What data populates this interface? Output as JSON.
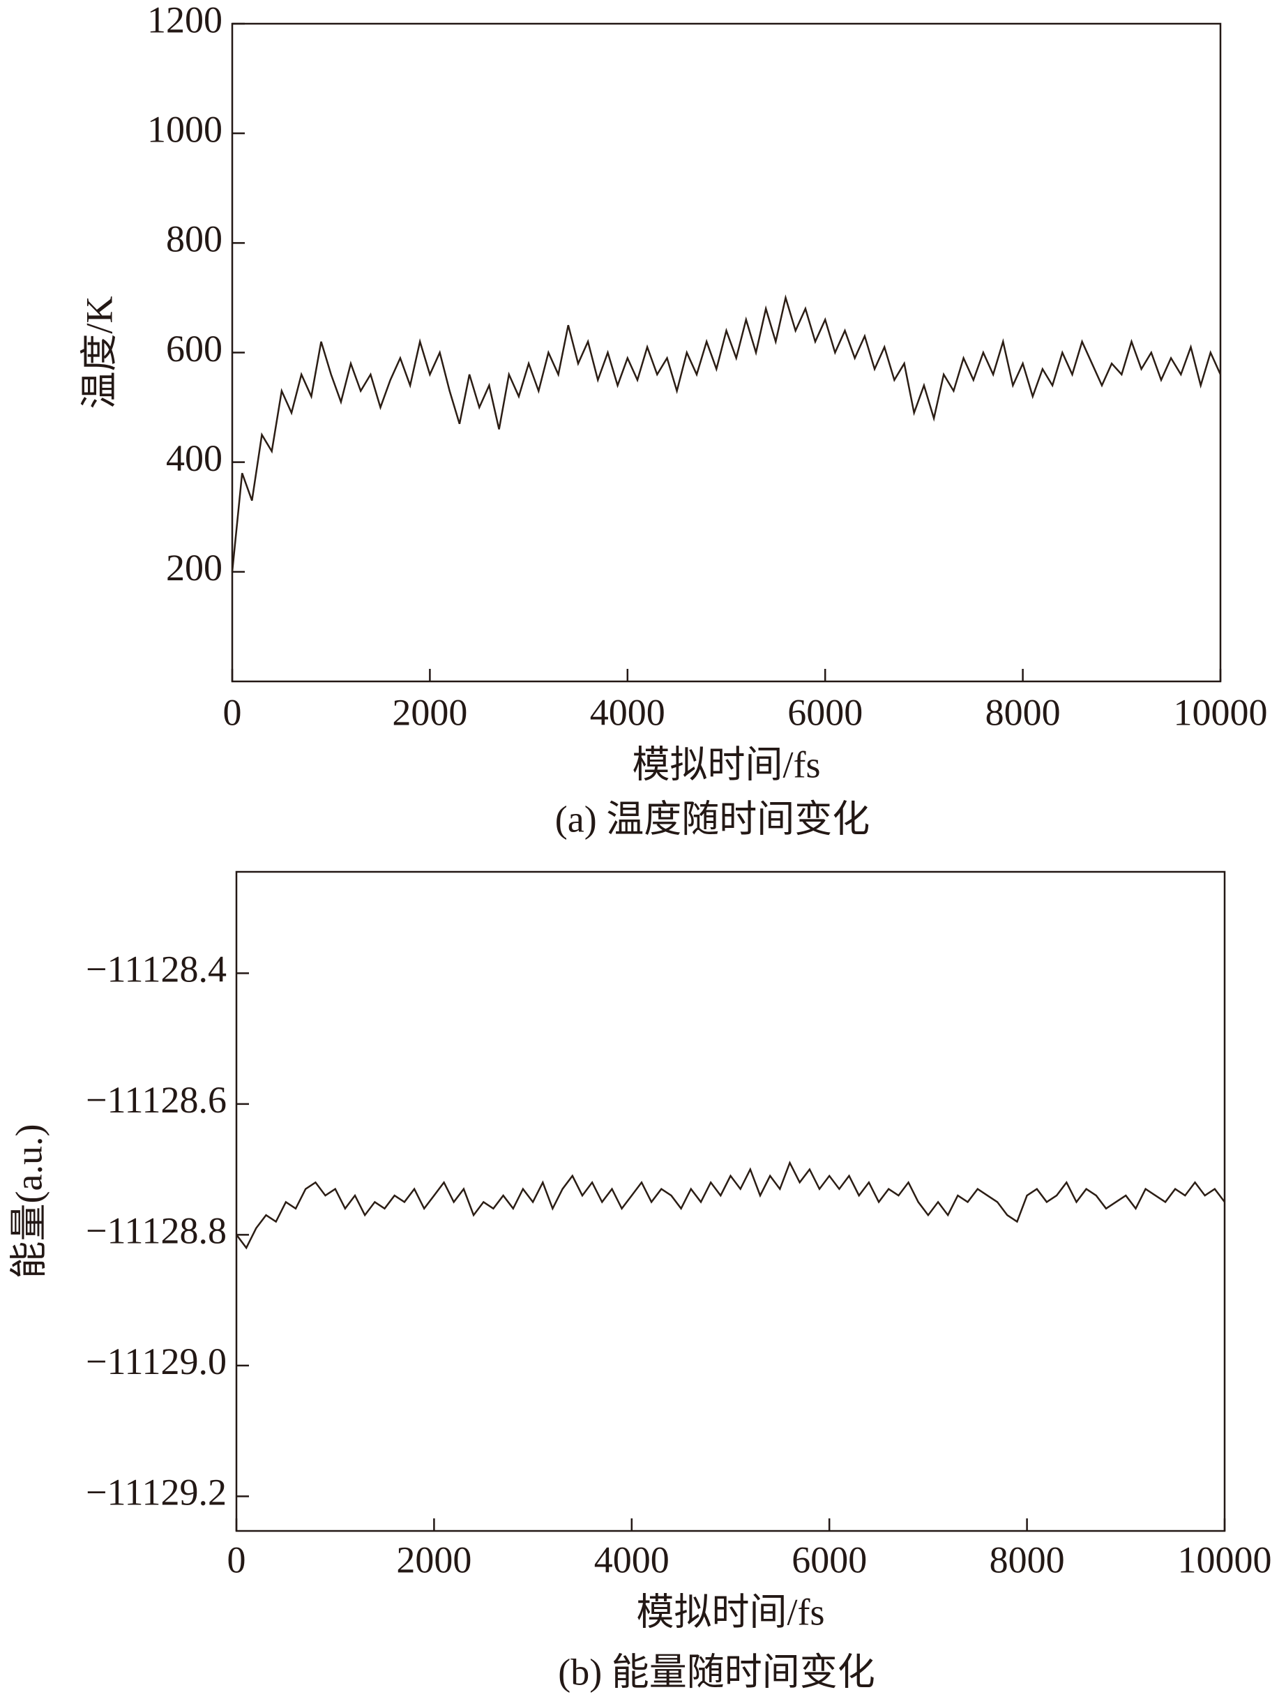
{
  "chart_data": [
    {
      "type": "line",
      "caption": "(a) 温度随时间变化",
      "x_label": "模拟时间/fs",
      "y_label": "温度/K",
      "color": "#2b1d14",
      "x": [
        0,
        100,
        200,
        300,
        400,
        500,
        600,
        700,
        800,
        900,
        1000,
        1100,
        1200,
        1300,
        1400,
        1500,
        1600,
        1700,
        1800,
        1900,
        2000,
        2100,
        2200,
        2300,
        2400,
        2500,
        2600,
        2700,
        2800,
        2900,
        3000,
        3100,
        3200,
        3300,
        3400,
        3500,
        3600,
        3700,
        3800,
        3900,
        4000,
        4100,
        4200,
        4300,
        4400,
        4500,
        4600,
        4700,
        4800,
        4900,
        5000,
        5100,
        5200,
        5300,
        5400,
        5500,
        5600,
        5700,
        5800,
        5900,
        6000,
        6100,
        6200,
        6300,
        6400,
        6500,
        6600,
        6700,
        6800,
        6900,
        7000,
        7100,
        7200,
        7300,
        7400,
        7500,
        7600,
        7700,
        7800,
        7900,
        8000,
        8100,
        8200,
        8300,
        8400,
        8500,
        8600,
        8700,
        8800,
        8900,
        9000,
        9100,
        9200,
        9300,
        9400,
        9500,
        9600,
        9700,
        9800,
        9900,
        10000
      ],
      "values": [
        200,
        380,
        330,
        450,
        420,
        530,
        490,
        560,
        520,
        620,
        560,
        510,
        580,
        530,
        560,
        500,
        550,
        590,
        540,
        620,
        560,
        600,
        530,
        470,
        560,
        500,
        540,
        460,
        560,
        520,
        580,
        530,
        600,
        560,
        650,
        580,
        620,
        550,
        600,
        540,
        590,
        550,
        610,
        560,
        590,
        530,
        600,
        560,
        620,
        570,
        640,
        590,
        660,
        600,
        680,
        620,
        700,
        640,
        680,
        620,
        660,
        600,
        640,
        590,
        630,
        570,
        610,
        550,
        580,
        490,
        540,
        480,
        560,
        530,
        590,
        550,
        600,
        560,
        620,
        540,
        580,
        520,
        570,
        540,
        600,
        560,
        620,
        580,
        540,
        580,
        560,
        620,
        570,
        600,
        550,
        590,
        560,
        610,
        540,
        600,
        560
      ],
      "xlim": [
        0,
        10000
      ],
      "ylim": [
        0,
        1200
      ],
      "xticks": [
        0,
        2000,
        4000,
        6000,
        8000,
        10000
      ],
      "yticks": [
        200,
        400,
        600,
        800,
        1000,
        1200
      ]
    },
    {
      "type": "line",
      "caption": "(b) 能量随时间变化",
      "x_label": "模拟时间/fs",
      "y_label": "能量(a.u.)",
      "color": "#2b1d14",
      "x": [
        0,
        100,
        200,
        300,
        400,
        500,
        600,
        700,
        800,
        900,
        1000,
        1100,
        1200,
        1300,
        1400,
        1500,
        1600,
        1700,
        1800,
        1900,
        2000,
        2100,
        2200,
        2300,
        2400,
        2500,
        2600,
        2700,
        2800,
        2900,
        3000,
        3100,
        3200,
        3300,
        3400,
        3500,
        3600,
        3700,
        3800,
        3900,
        4000,
        4100,
        4200,
        4300,
        4400,
        4500,
        4600,
        4700,
        4800,
        4900,
        5000,
        5100,
        5200,
        5300,
        5400,
        5500,
        5600,
        5700,
        5800,
        5900,
        6000,
        6100,
        6200,
        6300,
        6400,
        6500,
        6600,
        6700,
        6800,
        6900,
        7000,
        7100,
        7200,
        7300,
        7400,
        7500,
        7600,
        7700,
        7800,
        7900,
        8000,
        8100,
        8200,
        8300,
        8400,
        8500,
        8600,
        8700,
        8800,
        8900,
        9000,
        9100,
        9200,
        9300,
        9400,
        9500,
        9600,
        9700,
        9800,
        9900,
        10000
      ],
      "values": [
        -11128.8,
        -11128.82,
        -11128.79,
        -11128.77,
        -11128.78,
        -11128.75,
        -11128.76,
        -11128.73,
        -11128.72,
        -11128.74,
        -11128.73,
        -11128.76,
        -11128.74,
        -11128.77,
        -11128.75,
        -11128.76,
        -11128.74,
        -11128.75,
        -11128.73,
        -11128.76,
        -11128.74,
        -11128.72,
        -11128.75,
        -11128.73,
        -11128.77,
        -11128.75,
        -11128.76,
        -11128.74,
        -11128.76,
        -11128.73,
        -11128.75,
        -11128.72,
        -11128.76,
        -11128.73,
        -11128.71,
        -11128.74,
        -11128.72,
        -11128.75,
        -11128.73,
        -11128.76,
        -11128.74,
        -11128.72,
        -11128.75,
        -11128.73,
        -11128.74,
        -11128.76,
        -11128.73,
        -11128.75,
        -11128.72,
        -11128.74,
        -11128.71,
        -11128.73,
        -11128.7,
        -11128.74,
        -11128.71,
        -11128.73,
        -11128.69,
        -11128.72,
        -11128.7,
        -11128.73,
        -11128.71,
        -11128.73,
        -11128.71,
        -11128.74,
        -11128.72,
        -11128.75,
        -11128.73,
        -11128.74,
        -11128.72,
        -11128.75,
        -11128.77,
        -11128.75,
        -11128.77,
        -11128.74,
        -11128.75,
        -11128.73,
        -11128.74,
        -11128.75,
        -11128.77,
        -11128.78,
        -11128.74,
        -11128.73,
        -11128.75,
        -11128.74,
        -11128.72,
        -11128.75,
        -11128.73,
        -11128.74,
        -11128.76,
        -11128.75,
        -11128.74,
        -11128.76,
        -11128.73,
        -11128.74,
        -11128.75,
        -11128.73,
        -11128.74,
        -11128.72,
        -11128.74,
        -11128.73,
        -11128.75
      ],
      "xlim": [
        0,
        10000
      ],
      "ylim": [
        -11129.253,
        -11128.245
      ],
      "xticks": [
        0,
        2000,
        4000,
        6000,
        8000,
        10000
      ],
      "yticks": [
        {
          "value": -11128.4,
          "label": "−11128.4"
        },
        {
          "value": -11128.6,
          "label": "−11128.6"
        },
        {
          "value": -11128.8,
          "label": "−11128.8"
        },
        {
          "value": -11129.0,
          "label": "−11129.0"
        },
        {
          "value": -11129.2,
          "label": "−11129.2"
        }
      ]
    }
  ]
}
